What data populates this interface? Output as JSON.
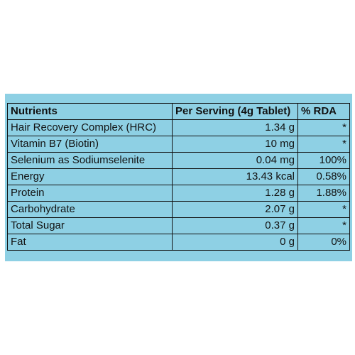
{
  "table": {
    "headers": [
      "Nutrients",
      "Per Serving (4g Tablet)",
      "% RDA"
    ],
    "rows": [
      {
        "nutrient": "Hair Recovery Complex (HRC)",
        "per_serving": "1.34 g",
        "rda": "*"
      },
      {
        "nutrient": "Vitamin B7 (Biotin)",
        "per_serving": "10 mg",
        "rda": "*"
      },
      {
        "nutrient": "Selenium as Sodiumselenite",
        "per_serving": "0.04 mg",
        "rda": "100%"
      },
      {
        "nutrient": "Energy",
        "per_serving": "13.43 kcal",
        "rda": "0.58%"
      },
      {
        "nutrient": "Protein",
        "per_serving": "1.28 g",
        "rda": "1.88%"
      },
      {
        "nutrient": "Carbohydrate",
        "per_serving": "2.07 g",
        "rda": "*"
      },
      {
        "nutrient": "Total Sugar",
        "per_serving": "0.37 g",
        "rda": "*"
      },
      {
        "nutrient": "Fat",
        "per_serving": "0 g",
        "rda": "0%"
      }
    ]
  },
  "colors": {
    "panel_background": "#8ed0e4",
    "text": "#111111",
    "border": "#111111"
  }
}
